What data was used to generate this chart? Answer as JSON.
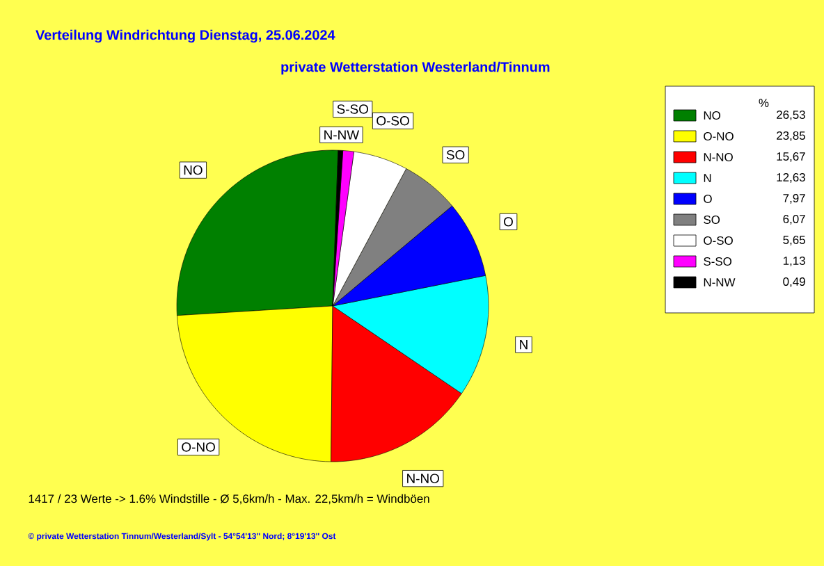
{
  "chart_data": {
    "type": "pie",
    "title": "Verteilung Windrichtung   Dienstag, 25.06.2024",
    "subtitle": "private Wetterstation Westerland/Tinnum",
    "categories": [
      "NO",
      "O-NO",
      "N-NO",
      "N",
      "O",
      "SO",
      "O-SO",
      "S-SO",
      "N-NW"
    ],
    "values": [
      26.53,
      23.85,
      15.67,
      12.63,
      7.97,
      6.07,
      5.65,
      1.13,
      0.49
    ],
    "colors": [
      "#008000",
      "#ffff00",
      "#ff0000",
      "#00ffff",
      "#0000ff",
      "#808080",
      "#ffffff",
      "#ff00ff",
      "#000000"
    ],
    "value_labels": [
      "26,53",
      "23,85",
      "15,67",
      "12,63",
      "7,97",
      "6,07",
      "5,65",
      "1,13",
      "0,49"
    ],
    "legend": "right",
    "legend_title": "%",
    "annotations": [
      "1417 / 23 Werte  -> 1.6% Windstille   -   Ø 5,6km/h  -  Max. 22,5km/h = Windböen",
      "© private Wetterstation Tinnum/Westerland/Sylt  -  54°54'13'' Nord; 8°19'13'' Ost"
    ]
  }
}
